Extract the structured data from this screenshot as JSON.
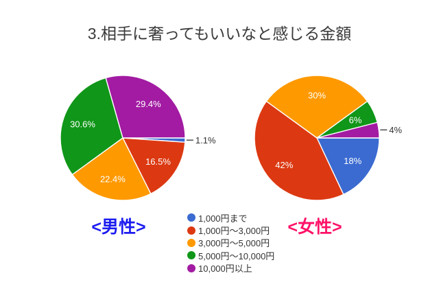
{
  "title": "3.相手に奢ってもいいなと感じる金額",
  "background": "#ffffff",
  "legend": {
    "position": "bottom-center",
    "items": [
      {
        "label": "1,000円まで",
        "color": "#3b6bd1"
      },
      {
        "label": "1,000円〜3,000円",
        "color": "#dc3912"
      },
      {
        "label": "3,000円〜5,000円",
        "color": "#ff9900"
      },
      {
        "label": "5,000円〜10,000円",
        "color": "#109618"
      },
      {
        "label": "10,000円以上",
        "color": "#a21ba2"
      }
    ]
  },
  "chart_data": [
    {
      "type": "pie",
      "group": "male",
      "caption": "<男性>",
      "caption_color": "#1c1cf0",
      "categories": [
        "1,000円まで",
        "1,000円〜3,000円",
        "3,000円〜5,000円",
        "5,000円〜10,000円",
        "10,000円以上"
      ],
      "values": [
        1.1,
        16.5,
        22.4,
        30.6,
        29.4
      ],
      "labels": [
        "1.1%",
        "16.5%",
        "22.4%",
        "30.6%",
        "29.4%"
      ],
      "unit": "%",
      "start_angle_deg_clockwise_from_top": 90,
      "direction": "clockwise",
      "inside_label_color": "#ffffff",
      "outside_label_color": "#333333",
      "outside_label_threshold_pct": 5
    },
    {
      "type": "pie",
      "group": "female",
      "caption": "<女性>",
      "caption_color": "#ff1268",
      "categories": [
        "1,000円まで",
        "1,000円〜3,000円",
        "3,000円〜5,000円",
        "5,000円〜10,000円",
        "10,000円以上"
      ],
      "values": [
        18,
        42,
        30,
        6,
        4
      ],
      "labels": [
        "18%",
        "42%",
        "30%",
        "6%",
        "4%"
      ],
      "unit": "%",
      "start_angle_deg_clockwise_from_top": 90,
      "direction": "clockwise",
      "inside_label_color": "#ffffff",
      "outside_label_color": "#333333",
      "outside_label_threshold_pct": 5
    }
  ]
}
